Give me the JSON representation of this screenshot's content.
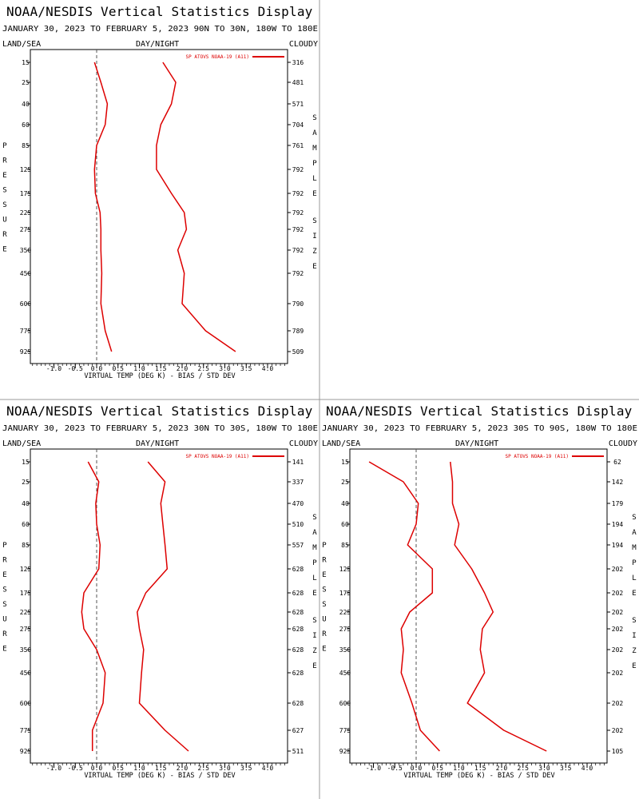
{
  "display": {
    "title": "NOAA/NESDIS Vertical Statistics Display",
    "header_left": "LAND/SEA",
    "header_center": "DAY/NIGHT",
    "header_right": "CLOUDY",
    "left_axis_label": "PRESSURE",
    "right_axis_label": "SAMPLE SIZE",
    "colors": {
      "series": "#dd0000",
      "axis": "#000000",
      "frame": "#999999",
      "zero_line": "#555555"
    }
  },
  "chart_data": [
    {
      "type": "line",
      "panel": "top-left",
      "subtitle": "JANUARY 30, 2023 TO FEBRUARY 5, 2023 90N TO 30N, 180W TO 180E",
      "xlabel": "VIRTUAL TEMP (DEG K) - BIAS / STD DEV",
      "x_ticks": [
        "-1.0",
        "-0.5",
        "0.0",
        "0.5",
        "1.0",
        "1.5",
        "2.0",
        "2.5",
        "3.0",
        "3.5",
        "4.0"
      ],
      "xlim": [
        -1.5,
        4.5
      ],
      "pressure_levels": [
        15,
        25,
        40,
        60,
        85,
        125,
        175,
        225,
        275,
        350,
        450,
        600,
        775,
        925
      ],
      "sample_size": [
        316,
        481,
        571,
        704,
        761,
        792,
        792,
        792,
        792,
        792,
        792,
        790,
        789,
        509
      ],
      "legend": "SP ATOVS NOAA-19 (A11)",
      "series": [
        {
          "name": "bias",
          "values": [
            -0.05,
            0.1,
            0.25,
            0.2,
            0.0,
            -0.05,
            -0.03,
            0.08,
            0.1,
            0.1,
            0.12,
            0.1,
            0.2,
            0.35
          ]
        },
        {
          "name": "std dev",
          "values": [
            1.55,
            1.85,
            1.75,
            1.5,
            1.4,
            1.4,
            1.75,
            2.05,
            2.1,
            1.9,
            2.05,
            2.0,
            2.55,
            3.25
          ]
        }
      ]
    },
    {
      "type": "line",
      "panel": "bottom-left",
      "subtitle": "JANUARY 30, 2023 TO FEBRUARY 5, 2023 30N TO 30S, 180W TO 180E",
      "xlabel": "VIRTUAL TEMP (DEG K) - BIAS / STD DEV",
      "x_ticks": [
        "-1.0",
        "-0.5",
        "0.0",
        "0.5",
        "1.0",
        "1.5",
        "2.0",
        "2.5",
        "3.0",
        "3.5",
        "4.0"
      ],
      "xlim": [
        -1.5,
        4.5
      ],
      "pressure_levels": [
        15,
        25,
        40,
        60,
        85,
        125,
        175,
        225,
        275,
        350,
        450,
        600,
        775,
        925
      ],
      "sample_size": [
        141,
        337,
        470,
        510,
        557,
        628,
        628,
        628,
        628,
        628,
        628,
        628,
        627,
        511
      ],
      "legend": "SP ATOVS NOAA-19 (A11)",
      "series": [
        {
          "name": "bias",
          "values": [
            -0.2,
            0.05,
            -0.02,
            0.0,
            0.08,
            0.05,
            -0.3,
            -0.35,
            -0.3,
            0.0,
            0.2,
            0.15,
            -0.1,
            -0.1
          ]
        },
        {
          "name": "std dev",
          "values": [
            1.2,
            1.6,
            1.5,
            1.55,
            1.6,
            1.65,
            1.15,
            0.95,
            1.0,
            1.1,
            1.05,
            1.0,
            1.6,
            2.15
          ]
        }
      ]
    },
    {
      "type": "line",
      "panel": "bottom-right",
      "subtitle": "JANUARY 30, 2023 TO FEBRUARY 5, 2023 30S TO 90S, 180W TO 180E",
      "xlabel": "VIRTUAL TEMP (DEG K) - BIAS / STD DEV",
      "x_ticks": [
        "-1.0",
        "-0.5",
        "0.0",
        "0.5",
        "1.0",
        "1.5",
        "2.0",
        "2.5",
        "3.0",
        "3.5",
        "4.0"
      ],
      "xlim": [
        -1.5,
        4.5
      ],
      "pressure_levels": [
        15,
        25,
        40,
        60,
        85,
        125,
        175,
        225,
        275,
        350,
        450,
        600,
        775,
        925
      ],
      "sample_size": [
        62,
        142,
        179,
        194,
        194,
        202,
        202,
        202,
        202,
        202,
        202,
        202,
        202,
        105
      ],
      "legend": "SP ATOVS NOAA-19 (A11)",
      "series": [
        {
          "name": "bias",
          "values": [
            -1.1,
            -0.3,
            0.05,
            0.0,
            -0.2,
            0.38,
            0.38,
            -0.15,
            -0.35,
            -0.3,
            -0.35,
            -0.1,
            0.1,
            0.55
          ]
        },
        {
          "name": "std dev",
          "values": [
            0.8,
            0.85,
            0.85,
            1.0,
            0.9,
            1.3,
            1.6,
            1.8,
            1.55,
            1.5,
            1.6,
            1.2,
            2.05,
            3.05
          ]
        }
      ]
    }
  ]
}
